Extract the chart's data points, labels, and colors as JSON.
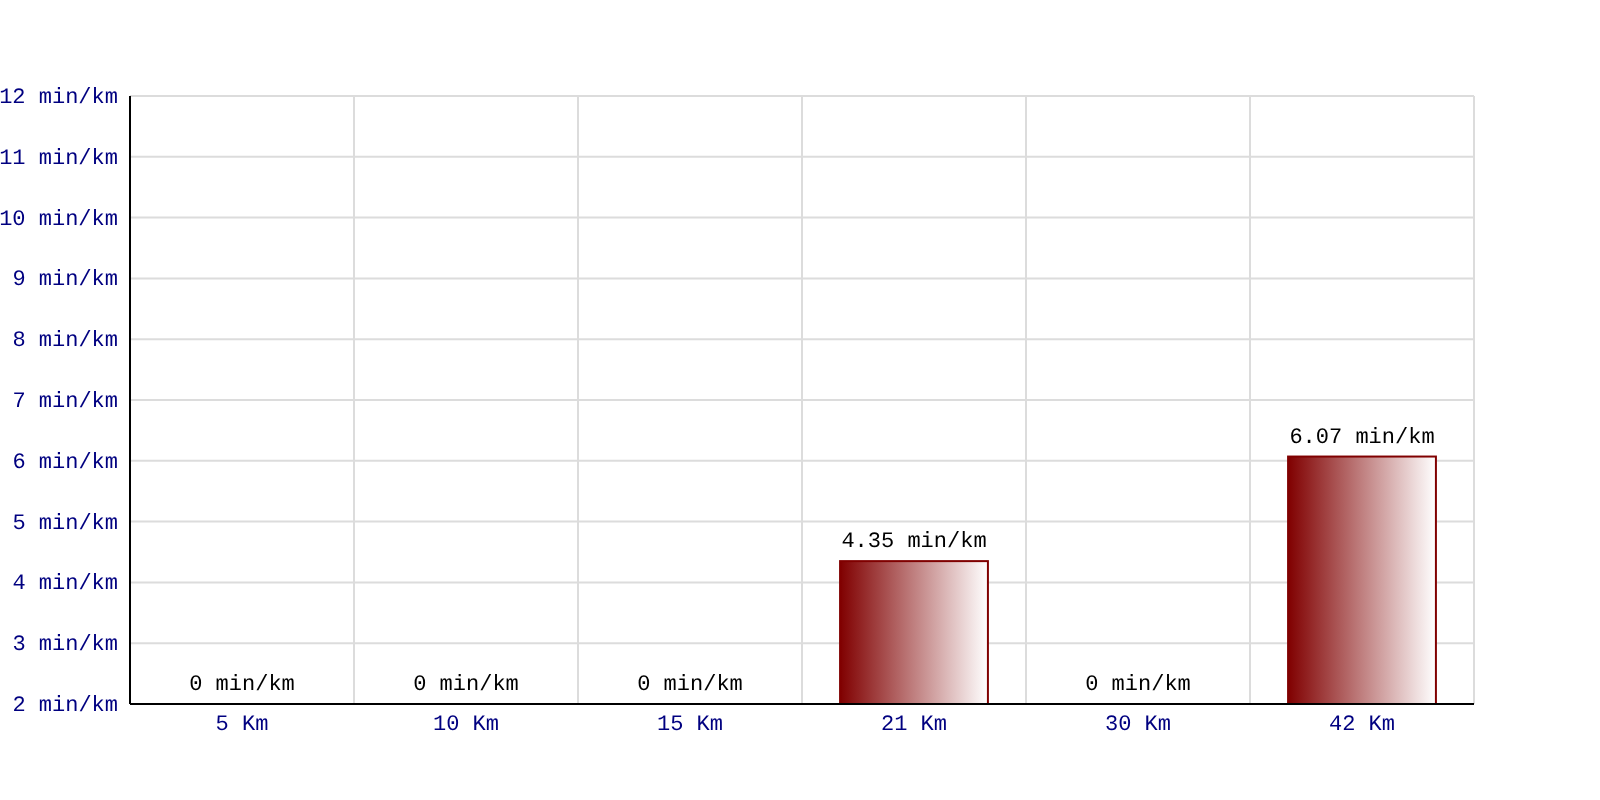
{
  "chart_data": {
    "type": "bar",
    "categories": [
      "5 Km",
      "10 Km",
      "15 Km",
      "21 Km",
      "30 Km",
      "42 Km"
    ],
    "values": [
      null,
      null,
      null,
      4.35,
      null,
      6.07
    ],
    "value_labels": [
      "0 min/km",
      "0 min/km",
      "0 min/km",
      "4.35 min/km",
      "0 min/km",
      "6.07 min/km"
    ],
    "color": "#800000",
    "ylim": [
      2,
      12
    ],
    "yticks": [
      {
        "value": 2,
        "label": "2 min/km"
      },
      {
        "value": 3,
        "label": "3 min/km"
      },
      {
        "value": 4,
        "label": "4 min/km"
      },
      {
        "value": 5,
        "label": "5 min/km"
      },
      {
        "value": 6,
        "label": "6 min/km"
      },
      {
        "value": 7,
        "label": "7 min/km"
      },
      {
        "value": 8,
        "label": "8 min/km"
      },
      {
        "value": 9,
        "label": "9 min/km"
      },
      {
        "value": 10,
        "label": "10 min/km"
      },
      {
        "value": 11,
        "label": "11 min/km"
      },
      {
        "value": 12,
        "label": "12 min/km"
      }
    ],
    "grid": true
  }
}
